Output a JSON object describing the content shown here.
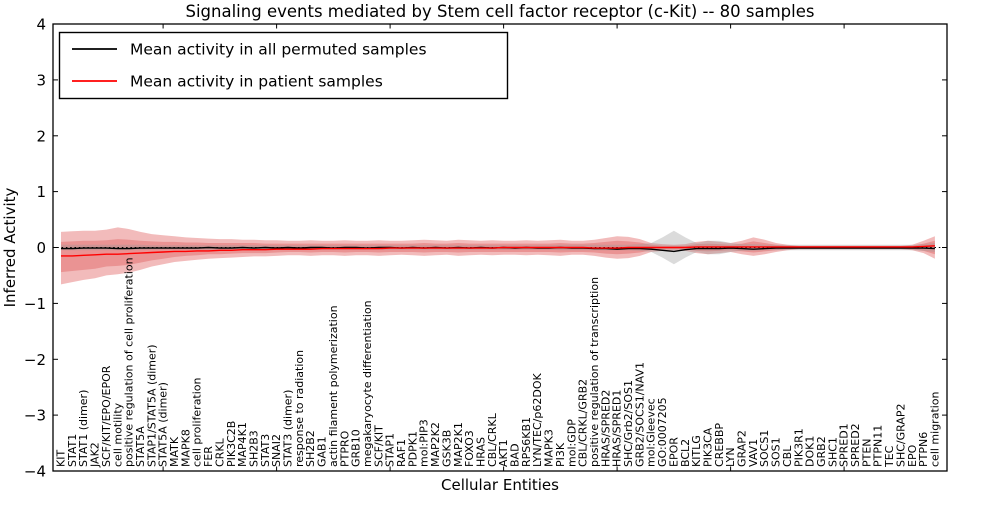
{
  "title": "Signaling events mediated by Stem cell factor receptor (c-Kit) -- 80 samples",
  "legend": [
    {
      "label": "Mean activity in all permuted samples",
      "color": "#000000"
    },
    {
      "label": "Mean activity in patient samples",
      "color": "#ff0000"
    }
  ],
  "axes": {
    "xlabel": "Cellular Entities",
    "ylabel": "Inferred Activity",
    "ylim": [
      -4,
      4
    ],
    "yticks": [
      4,
      3,
      2,
      1,
      0,
      -1,
      -2,
      -3,
      -4
    ],
    "ytick_labels": [
      "4",
      "3",
      "2",
      "1",
      "0",
      "−1",
      "−2",
      "−3",
      "−4"
    ],
    "grid": false,
    "legend_position": "upper left"
  },
  "chart_data": {
    "type": "area",
    "title": "Signaling events mediated by Stem cell factor receptor (c-Kit) -- 80 samples",
    "xlabel": "Cellular Entities",
    "ylabel": "Inferred Activity",
    "ylim": [
      -4,
      4
    ],
    "zero_line": 0,
    "categories": [
      "KIT",
      "STAT1",
      "STAT1 (dimer)",
      "JAK2",
      "SCF/KIT/EPO/EPOR",
      "cell motility",
      "positive regulation of cell proliferation",
      "STAT5A",
      "STAP1/STAT5A (dimer)",
      "STAT5A (dimer)",
      "MATK",
      "MAPK8",
      "cell proliferation",
      "FER",
      "CRKL",
      "PIK3C2B",
      "MAP4K1",
      "SH2B3",
      "STAT3",
      "SNAI2",
      "STAT3 (dimer)",
      "response to radiation",
      "SH2B2",
      "GAB1",
      "actin filament polymerization",
      "PTPRO",
      "GRB10",
      "megakaryocyte differentiation",
      "SCF/KIT",
      "STAP1",
      "RAF1",
      "PDPK1",
      "mol:PIP3",
      "MAP2K2",
      "GSK3B",
      "MAP2K1",
      "FOXO3",
      "HRAS",
      "CBL/CRKL",
      "AKT1",
      "BAD",
      "RPS6KB1",
      "LYN/TEC/p62DOK",
      "MAPK3",
      "PI3K",
      "mol:GDP",
      "CBL/CRKL/GRB2",
      "positive regulation of transcription",
      "HRAS/SPRED2",
      "HRAS/SPRED1",
      "SHC/Grb2/SOS1",
      "GRB2/SOCS1/NAV1",
      "mol:Gleevec",
      "GO:0007205",
      "EPOR",
      "BCL2",
      "KITLG",
      "PIK3CA",
      "CREBBP",
      "LYN",
      "GRAP2",
      "VAV1",
      "SOCS1",
      "SOS1",
      "CBL",
      "PIK3R1",
      "DOK1",
      "GRB2",
      "SHC1",
      "SPRED1",
      "SPRED2",
      "PTEN",
      "PTPN11",
      "TEC",
      "SHC/GRAP2",
      "EPO",
      "PTPN6",
      "cell migration"
    ],
    "series": [
      {
        "name": "patient_band_outer",
        "kind": "band",
        "color": "#e05c5c",
        "opacity": 0.42,
        "hi": [
          0.28,
          0.29,
          0.3,
          0.3,
          0.32,
          0.36,
          0.33,
          0.28,
          0.24,
          0.22,
          0.2,
          0.18,
          0.17,
          0.16,
          0.15,
          0.15,
          0.14,
          0.14,
          0.13,
          0.13,
          0.12,
          0.12,
          0.13,
          0.12,
          0.12,
          0.13,
          0.12,
          0.12,
          0.13,
          0.12,
          0.12,
          0.13,
          0.14,
          0.13,
          0.12,
          0.14,
          0.13,
          0.12,
          0.13,
          0.12,
          0.12,
          0.13,
          0.12,
          0.13,
          0.14,
          0.12,
          0.12,
          0.14,
          0.17,
          0.2,
          0.19,
          0.15,
          0.08,
          0.06,
          0.05,
          0.06,
          0.1,
          0.12,
          0.1,
          0.08,
          0.12,
          0.18,
          0.14,
          0.08,
          0.05,
          0.03,
          0.03,
          0.03,
          0.03,
          0.03,
          0.03,
          0.03,
          0.03,
          0.03,
          0.03,
          0.05,
          0.12,
          0.2
        ],
        "lo": [
          -0.66,
          -0.62,
          -0.58,
          -0.55,
          -0.5,
          -0.48,
          -0.45,
          -0.4,
          -0.34,
          -0.3,
          -0.26,
          -0.24,
          -0.22,
          -0.2,
          -0.19,
          -0.18,
          -0.17,
          -0.16,
          -0.16,
          -0.15,
          -0.14,
          -0.14,
          -0.15,
          -0.14,
          -0.14,
          -0.15,
          -0.14,
          -0.14,
          -0.15,
          -0.14,
          -0.13,
          -0.14,
          -0.15,
          -0.14,
          -0.13,
          -0.15,
          -0.14,
          -0.13,
          -0.14,
          -0.13,
          -0.13,
          -0.14,
          -0.13,
          -0.14,
          -0.15,
          -0.13,
          -0.13,
          -0.15,
          -0.18,
          -0.2,
          -0.19,
          -0.15,
          -0.08,
          -0.06,
          -0.05,
          -0.06,
          -0.1,
          -0.12,
          -0.1,
          -0.08,
          -0.12,
          -0.15,
          -0.12,
          -0.08,
          -0.05,
          -0.03,
          -0.03,
          -0.03,
          -0.03,
          -0.03,
          -0.03,
          -0.03,
          -0.03,
          -0.03,
          -0.03,
          -0.05,
          -0.1,
          -0.2
        ]
      },
      {
        "name": "patient_band_inner",
        "kind": "band",
        "color": "#e05c5c",
        "opacity": 0.42,
        "hi": [
          0.1,
          0.11,
          0.12,
          0.12,
          0.13,
          0.15,
          0.14,
          0.12,
          0.11,
          0.1,
          0.1,
          0.09,
          0.09,
          0.08,
          0.08,
          0.08,
          0.08,
          0.08,
          0.07,
          0.07,
          0.07,
          0.07,
          0.07,
          0.07,
          0.07,
          0.07,
          0.07,
          0.07,
          0.07,
          0.07,
          0.07,
          0.07,
          0.08,
          0.07,
          0.07,
          0.08,
          0.07,
          0.07,
          0.07,
          0.07,
          0.07,
          0.07,
          0.07,
          0.07,
          0.08,
          0.07,
          0.07,
          0.08,
          0.1,
          0.12,
          0.11,
          0.09,
          0.05,
          0.03,
          0.03,
          0.03,
          0.06,
          0.07,
          0.06,
          0.05,
          0.07,
          0.11,
          0.08,
          0.05,
          0.03,
          0.02,
          0.02,
          0.02,
          0.02,
          0.02,
          0.02,
          0.02,
          0.02,
          0.02,
          0.02,
          0.03,
          0.07,
          0.12
        ],
        "lo": [
          -0.44,
          -0.42,
          -0.4,
          -0.38,
          -0.34,
          -0.33,
          -0.31,
          -0.27,
          -0.23,
          -0.2,
          -0.17,
          -0.15,
          -0.14,
          -0.12,
          -0.12,
          -0.11,
          -0.1,
          -0.1,
          -0.1,
          -0.09,
          -0.08,
          -0.08,
          -0.09,
          -0.08,
          -0.08,
          -0.09,
          -0.08,
          -0.08,
          -0.09,
          -0.08,
          -0.08,
          -0.08,
          -0.09,
          -0.08,
          -0.08,
          -0.09,
          -0.08,
          -0.08,
          -0.08,
          -0.08,
          -0.08,
          -0.08,
          -0.08,
          -0.08,
          -0.09,
          -0.08,
          -0.08,
          -0.09,
          -0.11,
          -0.12,
          -0.11,
          -0.09,
          -0.05,
          -0.03,
          -0.03,
          -0.03,
          -0.06,
          -0.07,
          -0.06,
          -0.05,
          -0.07,
          -0.09,
          -0.07,
          -0.05,
          -0.03,
          -0.02,
          -0.02,
          -0.02,
          -0.02,
          -0.02,
          -0.02,
          -0.02,
          -0.02,
          -0.02,
          -0.02,
          -0.03,
          -0.06,
          -0.12
        ]
      },
      {
        "name": "permuted_band",
        "kind": "band",
        "color": "#999999",
        "opacity": 0.35,
        "hi": [
          0.05,
          0.05,
          0.05,
          0.05,
          0.05,
          0.05,
          0.05,
          0.05,
          0.04,
          0.04,
          0.04,
          0.04,
          0.04,
          0.04,
          0.04,
          0.04,
          0.04,
          0.04,
          0.04,
          0.04,
          0.04,
          0.04,
          0.04,
          0.04,
          0.04,
          0.04,
          0.04,
          0.04,
          0.04,
          0.04,
          0.04,
          0.04,
          0.04,
          0.04,
          0.04,
          0.04,
          0.04,
          0.04,
          0.04,
          0.04,
          0.04,
          0.04,
          0.04,
          0.04,
          0.05,
          0.05,
          0.05,
          0.05,
          0.05,
          0.05,
          0.05,
          0.06,
          0.08,
          0.18,
          0.3,
          0.18,
          0.08,
          0.12,
          0.12,
          0.08,
          0.06,
          0.06,
          0.05,
          0.05,
          0.05,
          0.05,
          0.05,
          0.05,
          0.05,
          0.05,
          0.05,
          0.05,
          0.05,
          0.05,
          0.05,
          0.05,
          0.06,
          0.08
        ],
        "lo": [
          -0.05,
          -0.05,
          -0.05,
          -0.05,
          -0.05,
          -0.05,
          -0.05,
          -0.05,
          -0.04,
          -0.04,
          -0.04,
          -0.04,
          -0.04,
          -0.04,
          -0.04,
          -0.04,
          -0.04,
          -0.04,
          -0.04,
          -0.04,
          -0.04,
          -0.04,
          -0.04,
          -0.04,
          -0.04,
          -0.04,
          -0.04,
          -0.04,
          -0.04,
          -0.04,
          -0.04,
          -0.04,
          -0.04,
          -0.04,
          -0.04,
          -0.04,
          -0.04,
          -0.04,
          -0.04,
          -0.04,
          -0.04,
          -0.04,
          -0.04,
          -0.04,
          -0.05,
          -0.05,
          -0.05,
          -0.05,
          -0.05,
          -0.05,
          -0.05,
          -0.06,
          -0.08,
          -0.18,
          -0.3,
          -0.18,
          -0.08,
          -0.12,
          -0.12,
          -0.08,
          -0.06,
          -0.06,
          -0.05,
          -0.05,
          -0.05,
          -0.05,
          -0.05,
          -0.05,
          -0.05,
          -0.05,
          -0.05,
          -0.05,
          -0.05,
          -0.05,
          -0.05,
          -0.05,
          -0.06,
          -0.08
        ]
      },
      {
        "name": "Mean activity in all permuted samples",
        "kind": "line",
        "color": "#000000",
        "values": [
          -0.02,
          -0.02,
          -0.01,
          -0.01,
          -0.01,
          -0.02,
          -0.02,
          -0.01,
          -0.01,
          -0.01,
          -0.01,
          -0.01,
          -0.01,
          0,
          -0.01,
          -0.01,
          0,
          -0.01,
          0,
          -0.01,
          0,
          -0.01,
          0,
          0,
          -0.01,
          0,
          0,
          -0.01,
          0,
          0,
          -0.01,
          0,
          -0.01,
          0,
          -0.01,
          0,
          -0.01,
          0,
          -0.01,
          0,
          -0.01,
          0,
          -0.01,
          -0.01,
          0,
          -0.01,
          -0.01,
          -0.02,
          -0.02,
          -0.03,
          -0.02,
          -0.02,
          -0.03,
          -0.05,
          -0.07,
          -0.04,
          -0.02,
          -0.02,
          -0.02,
          -0.01,
          -0.02,
          -0.03,
          -0.02,
          -0.01,
          -0.01,
          -0.01,
          -0.01,
          -0.01,
          -0.01,
          -0.01,
          -0.01,
          -0.01,
          -0.01,
          -0.01,
          -0.01,
          -0.01,
          -0.01,
          -0.02
        ]
      },
      {
        "name": "Mean activity in patient samples",
        "kind": "line",
        "color": "#ff0000",
        "values": [
          -0.15,
          -0.15,
          -0.14,
          -0.13,
          -0.12,
          -0.12,
          -0.11,
          -0.1,
          -0.09,
          -0.08,
          -0.07,
          -0.07,
          -0.06,
          -0.06,
          -0.05,
          -0.05,
          -0.04,
          -0.04,
          -0.04,
          -0.03,
          -0.03,
          -0.03,
          -0.03,
          -0.02,
          -0.02,
          -0.02,
          -0.02,
          -0.02,
          -0.02,
          -0.01,
          -0.01,
          -0.01,
          -0.01,
          -0.01,
          -0.01,
          -0.01,
          -0.01,
          -0.01,
          -0.01,
          0,
          0,
          0,
          0,
          0,
          0,
          0,
          0,
          -0.01,
          -0.01,
          -0.01,
          0,
          0,
          0,
          0,
          0,
          0,
          0.01,
          0.01,
          0.01,
          0.01,
          0.01,
          0.01,
          0.01,
          0.01,
          0.01,
          0.01,
          0.01,
          0.01,
          0.01,
          0.01,
          0.01,
          0.01,
          0.01,
          0.01,
          0.01,
          0.01,
          0.02,
          0.03
        ]
      }
    ]
  }
}
